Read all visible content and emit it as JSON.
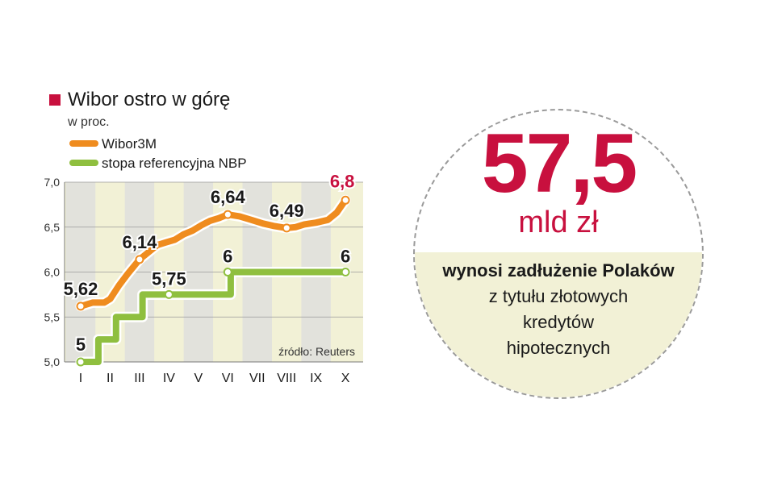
{
  "chart_data": {
    "type": "line",
    "title": "Wibor ostro w górę",
    "subtitle": "w proc.",
    "categories": [
      "I",
      "II",
      "III",
      "IV",
      "V",
      "VI",
      "VII",
      "VIII",
      "IX",
      "X"
    ],
    "ylim": [
      5.0,
      7.0
    ],
    "yticks": [
      "5,0",
      "5,5",
      "6,0",
      "6,5",
      "7,0"
    ],
    "grid": true,
    "legend": "top-left",
    "source": "źródło: Reuters",
    "series": [
      {
        "name": "Wibor3M",
        "color": "#ef8c1f",
        "x": [
          1.0,
          1.4,
          1.8,
          2.0,
          2.3,
          2.6,
          3.0,
          3.3,
          3.6,
          3.9,
          4.2,
          4.5,
          4.8,
          5.1,
          5.4,
          5.7,
          6.0,
          6.4,
          6.8,
          7.2,
          7.6,
          8.0,
          8.3,
          8.6,
          9.0,
          9.4,
          9.7,
          10.0
        ],
        "values": [
          5.62,
          5.66,
          5.66,
          5.7,
          5.85,
          5.98,
          6.14,
          6.22,
          6.3,
          6.33,
          6.36,
          6.42,
          6.46,
          6.52,
          6.57,
          6.6,
          6.64,
          6.62,
          6.58,
          6.54,
          6.51,
          6.49,
          6.5,
          6.53,
          6.55,
          6.58,
          6.66,
          6.8
        ],
        "labels": [
          {
            "text": "5,62",
            "x": 1.0,
            "y": 5.62
          },
          {
            "text": "6,14",
            "x": 3.0,
            "y": 6.14
          },
          {
            "text": "6,64",
            "x": 6.0,
            "y": 6.64
          },
          {
            "text": "6,49",
            "x": 8.0,
            "y": 6.49
          },
          {
            "text": "6,8",
            "x": 10.0,
            "y": 6.8
          }
        ]
      },
      {
        "name": "stopa referencyjna NBP",
        "color": "#8fbf3f",
        "x": [
          1.0,
          1.6,
          1.6,
          2.0,
          2.2,
          2.2,
          2.9,
          3.1,
          3.1,
          3.9,
          4.1,
          4.1,
          5.9,
          6.1,
          6.1,
          10.0
        ],
        "values": [
          5.0,
          5.0,
          5.25,
          5.25,
          5.25,
          5.5,
          5.5,
          5.5,
          5.75,
          5.75,
          5.75,
          5.75,
          5.75,
          5.75,
          6.0,
          6.0
        ],
        "labels": [
          {
            "text": "5",
            "x": 1.0,
            "y": 5.0
          },
          {
            "text": "5,75",
            "x": 4.0,
            "y": 5.75
          },
          {
            "text": "6",
            "x": 6.0,
            "y": 6.0
          },
          {
            "text": "6",
            "x": 10.0,
            "y": 6.0
          }
        ]
      }
    ]
  },
  "callout": {
    "value": "57,5",
    "unit": "mld zł",
    "caption_bold": "wynosi  zadłużenie Polaków",
    "caption_lines": [
      "z tytułu złotowych",
      "kredytów",
      "hipotecznych"
    ]
  },
  "colors": {
    "accent": "#c8103e",
    "wibor": "#ef8c1f",
    "nbp": "#8fbf3f",
    "band": "#f2f1d6",
    "column": "#e2e2dc"
  }
}
